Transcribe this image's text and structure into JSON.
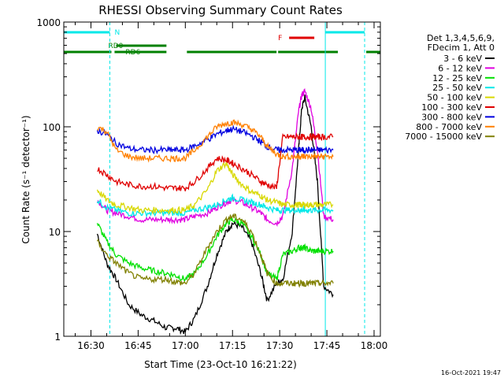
{
  "chart_data": {
    "type": "line",
    "title": "RHESSI Observing Summary Count Rates",
    "xlabel": "Start Time (23-Oct-10 16:21:22)",
    "ylabel": "Count Rate (s⁻¹ detector⁻¹)",
    "y_scale": "log",
    "ylim": [
      1,
      1000
    ],
    "xlim": [
      "16:21:22",
      "18:02:00"
    ],
    "x_ticks": [
      "16:30",
      "16:45",
      "17:00",
      "17:15",
      "17:30",
      "17:45",
      "18:00"
    ],
    "y_ticks": [
      "1",
      "10",
      "100",
      "1000"
    ],
    "timestamp": "16-Oct-2021 19:47",
    "legend": {
      "position": "right",
      "header": [
        "Det 1,3,4,5,6,9,",
        "FDecim 1, Att 0"
      ],
      "entries": [
        {
          "label": "3 - 6 keV",
          "color": "#000000"
        },
        {
          "label": "6 - 12 keV",
          "color": "#e000e0"
        },
        {
          "label": "12 - 25 keV",
          "color": "#00e000"
        },
        {
          "label": "25 - 50 keV",
          "color": "#00e8e8"
        },
        {
          "label": "50 - 100 keV",
          "color": "#d8d800"
        },
        {
          "label": "100 - 300 keV",
          "color": "#e00000"
        },
        {
          "label": "300 - 800 keV",
          "color": "#0000e0"
        },
        {
          "label": "800 - 7000 keV",
          "color": "#ff8000"
        },
        {
          "label": "7000 - 15000 keV",
          "color": "#808000"
        }
      ]
    },
    "flags": [
      {
        "label": "N",
        "color": "#00e8e8",
        "segments": [
          [
            "16:21:22",
            "16:36:00"
          ],
          [
            "17:44:30",
            "17:57:00"
          ]
        ]
      },
      {
        "label": "RD0",
        "color": "#008000",
        "segments": [
          [
            "16:38:00",
            "16:54:00"
          ]
        ]
      },
      {
        "label": "RD6",
        "color": "#008000",
        "segments": [
          [
            "16:21:22",
            "16:36:30"
          ],
          [
            "16:37:30",
            "16:54:00"
          ],
          [
            "17:00:30",
            "17:29:00"
          ],
          [
            "17:29:30",
            "17:48:30"
          ],
          [
            "17:57:30",
            "18:02:00"
          ]
        ]
      },
      {
        "label": "F",
        "color": "#e00000",
        "segments": [
          [
            "17:33:00",
            "17:41:00"
          ]
        ]
      }
    ],
    "series": [
      {
        "name": "3 - 6 keV",
        "color": "#000000",
        "x": [
          "16:32",
          "16:35",
          "16:38",
          "16:42",
          "16:46",
          "16:50",
          "16:54",
          "16:57",
          "17:00",
          "17:03",
          "17:07",
          "17:10",
          "17:13",
          "17:15",
          "17:18",
          "17:21",
          "17:24",
          "17:26",
          "17:29",
          "17:31",
          "17:34",
          "17:36",
          "17:37",
          "17:38",
          "17:40",
          "17:42",
          "17:44",
          "17:47"
        ],
        "y": [
          9.5,
          5,
          3.5,
          2,
          1.6,
          1.4,
          1.2,
          1.2,
          1.1,
          1.5,
          3,
          6,
          10,
          12,
          11,
          8,
          4,
          2.2,
          3.2,
          3.5,
          10,
          60,
          150,
          190,
          100,
          30,
          3,
          2.5
        ]
      },
      {
        "name": "6 - 12 keV",
        "color": "#e000e0",
        "x": [
          "16:32",
          "16:35",
          "16:38",
          "16:42",
          "16:46",
          "16:50",
          "16:54",
          "16:57",
          "17:00",
          "17:03",
          "17:07",
          "17:10",
          "17:13",
          "17:15",
          "17:18",
          "17:21",
          "17:24",
          "17:26",
          "17:29",
          "17:31",
          "17:34",
          "17:36",
          "17:37",
          "17:38",
          "17:40",
          "17:42",
          "17:44",
          "17:47"
        ],
        "y": [
          20,
          16,
          15,
          14,
          13,
          13,
          13,
          13,
          13,
          14,
          15,
          17,
          19,
          20,
          19,
          17,
          15,
          13,
          12,
          14,
          40,
          140,
          200,
          220,
          150,
          60,
          14,
          13
        ]
      },
      {
        "name": "12 - 25 keV",
        "color": "#00e000",
        "x": [
          "16:32",
          "16:35",
          "16:38",
          "16:42",
          "16:46",
          "16:50",
          "16:54",
          "16:57",
          "17:00",
          "17:03",
          "17:07",
          "17:10",
          "17:13",
          "17:15",
          "17:18",
          "17:21",
          "17:24",
          "17:26",
          "17:29",
          "17:31",
          "17:34",
          "17:36",
          "17:37",
          "17:38",
          "17:40",
          "17:42",
          "17:44",
          "17:47"
        ],
        "y": [
          12,
          8,
          6,
          5,
          4.5,
          4.2,
          4,
          3.8,
          3.5,
          4,
          6,
          9,
          12,
          13,
          12,
          9,
          6,
          4,
          3.5,
          6,
          6.5,
          7,
          7,
          7,
          6.5,
          6.5,
          6.5,
          6.5
        ]
      },
      {
        "name": "25 - 50 keV",
        "color": "#00e8e8",
        "x": [
          "16:32",
          "16:35",
          "16:38",
          "16:42",
          "16:46",
          "16:50",
          "16:54",
          "16:57",
          "17:00",
          "17:03",
          "17:07",
          "17:10",
          "17:13",
          "17:15",
          "17:18",
          "17:21",
          "17:24",
          "17:26",
          "17:29",
          "17:31",
          "17:34",
          "17:36",
          "17:37",
          "17:38",
          "17:40",
          "17:42",
          "17:44",
          "17:47"
        ],
        "y": [
          20,
          17,
          16,
          15,
          15,
          15,
          15,
          15,
          15,
          16,
          17,
          18,
          20,
          21,
          20,
          19,
          18,
          17,
          16,
          16,
          16,
          16,
          16,
          16,
          16,
          16,
          16,
          16
        ]
      },
      {
        "name": "50 - 100 keV",
        "color": "#d8d800",
        "x": [
          "16:32",
          "16:35",
          "16:38",
          "16:42",
          "16:46",
          "16:50",
          "16:54",
          "16:57",
          "17:00",
          "17:03",
          "17:07",
          "17:10",
          "17:13",
          "17:15",
          "17:18",
          "17:21",
          "17:24",
          "17:26",
          "17:29",
          "17:31",
          "17:34",
          "17:36",
          "17:37",
          "17:38",
          "17:40",
          "17:42",
          "17:44",
          "17:47"
        ],
        "y": [
          25,
          20,
          18,
          17,
          16,
          16,
          16,
          16,
          16,
          18,
          25,
          38,
          45,
          35,
          28,
          24,
          22,
          20,
          19,
          18,
          18,
          18,
          18,
          18,
          18,
          18,
          18,
          18
        ]
      },
      {
        "name": "100 - 300 keV",
        "color": "#e00000",
        "x": [
          "16:32",
          "16:35",
          "16:38",
          "16:42",
          "16:46",
          "16:50",
          "16:54",
          "16:57",
          "17:00",
          "17:03",
          "17:07",
          "17:10",
          "17:13",
          "17:15",
          "17:18",
          "17:21",
          "17:24",
          "17:26",
          "17:29",
          "17:31",
          "17:34",
          "17:36",
          "17:37",
          "17:38",
          "17:40",
          "17:42",
          "17:44",
          "17:47"
        ],
        "y": [
          40,
          35,
          30,
          28,
          27,
          27,
          26,
          26,
          26,
          30,
          40,
          50,
          48,
          45,
          40,
          35,
          30,
          28,
          26,
          80,
          80,
          80,
          80,
          80,
          80,
          80,
          80,
          80
        ]
      },
      {
        "name": "300 - 800 keV",
        "color": "#0000e0",
        "x": [
          "16:32",
          "16:35",
          "16:38",
          "16:42",
          "16:46",
          "16:50",
          "16:54",
          "16:57",
          "17:00",
          "17:03",
          "17:07",
          "17:10",
          "17:13",
          "17:15",
          "17:18",
          "17:21",
          "17:24",
          "17:26",
          "17:29",
          "17:31",
          "17:34",
          "17:36",
          "17:37",
          "17:38",
          "17:40",
          "17:42",
          "17:44",
          "17:47"
        ],
        "y": [
          92,
          85,
          70,
          62,
          60,
          60,
          60,
          60,
          60,
          66,
          75,
          85,
          92,
          95,
          90,
          82,
          72,
          65,
          60,
          60,
          60,
          60,
          60,
          60,
          60,
          60,
          60,
          60
        ]
      },
      {
        "name": "800 - 7000 keV",
        "color": "#ff8000",
        "x": [
          "16:32",
          "16:35",
          "16:38",
          "16:42",
          "16:46",
          "16:50",
          "16:54",
          "16:57",
          "17:00",
          "17:03",
          "17:07",
          "17:10",
          "17:13",
          "17:15",
          "17:18",
          "17:21",
          "17:24",
          "17:26",
          "17:29",
          "17:31",
          "17:34",
          "17:36",
          "17:37",
          "17:38",
          "17:40",
          "17:42",
          "17:44",
          "17:47"
        ],
        "y": [
          100,
          90,
          60,
          52,
          50,
          50,
          50,
          50,
          50,
          60,
          80,
          100,
          108,
          110,
          105,
          95,
          80,
          65,
          55,
          52,
          52,
          52,
          52,
          52,
          52,
          52,
          52,
          52
        ]
      },
      {
        "name": "7000 - 15000 keV",
        "color": "#808000",
        "x": [
          "16:32",
          "16:35",
          "16:38",
          "16:42",
          "16:46",
          "16:50",
          "16:54",
          "16:57",
          "17:00",
          "17:03",
          "17:07",
          "17:10",
          "17:13",
          "17:15",
          "17:18",
          "17:21",
          "17:24",
          "17:26",
          "17:29",
          "17:31",
          "17:34",
          "17:36",
          "17:37",
          "17:38",
          "17:40",
          "17:42",
          "17:44",
          "17:47"
        ],
        "y": [
          8,
          6,
          5,
          4,
          3.5,
          3.5,
          3.5,
          3.3,
          3.2,
          4,
          7,
          10,
          13,
          14,
          13,
          10,
          6,
          4,
          3.2,
          3.2,
          3.2,
          3.2,
          3.2,
          3.2,
          3.2,
          3.2,
          3.2,
          3.2
        ]
      }
    ]
  }
}
